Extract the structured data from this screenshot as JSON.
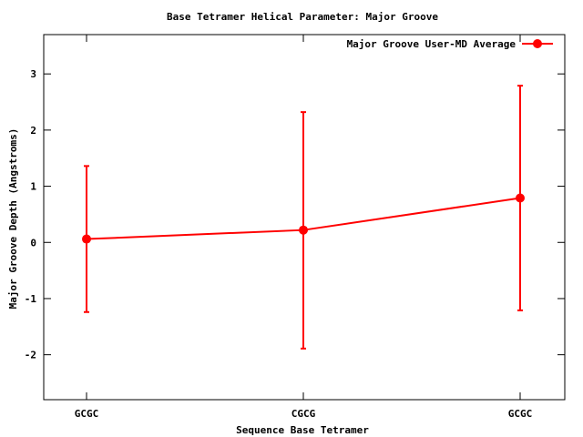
{
  "chart_data": {
    "type": "line",
    "title": "Base Tetramer Helical Parameter: Major Groove",
    "xlabel": "Sequence Base Tetramer",
    "ylabel": "Major Groove Depth (Angstroms)",
    "categories": [
      "GCGC",
      "CGCG",
      "GCGC"
    ],
    "ylim": [
      -2.8,
      3.7
    ],
    "yticks": [
      -2,
      -1,
      0,
      1,
      2,
      3
    ],
    "ytick_labels": [
      "-2",
      "-1",
      "0",
      "1",
      "2",
      "3"
    ],
    "grid": false,
    "legend_position": "top-right",
    "series": [
      {
        "name": "Major Groove User-MD Average",
        "values": [
          0.06,
          0.22,
          0.79
        ],
        "error_low": [
          -1.24,
          -1.89,
          -1.21
        ],
        "error_high": [
          1.36,
          2.32,
          2.79
        ],
        "color": "#ff0000"
      }
    ]
  }
}
